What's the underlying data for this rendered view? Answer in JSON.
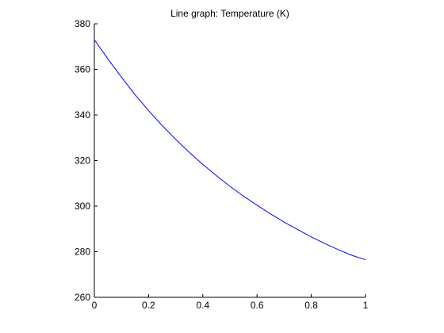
{
  "chart_data": {
    "type": "line",
    "title": "Line graph: Temperature (K)",
    "xlabel": "",
    "ylabel": "",
    "xlim": [
      0,
      1
    ],
    "ylim": [
      260,
      380
    ],
    "grid": false,
    "legend": "none",
    "x_ticks": [
      "0",
      "0.2",
      "0.4",
      "0.6",
      "0.8",
      "1"
    ],
    "y_ticks": [
      "260",
      "280",
      "300",
      "320",
      "340",
      "360",
      "380"
    ],
    "series": [
      {
        "color": "#0000ff",
        "x": [
          0,
          0.05,
          0.1,
          0.15,
          0.2,
          0.25,
          0.3,
          0.35,
          0.4,
          0.45,
          0.5,
          0.55,
          0.6,
          0.65,
          0.7,
          0.75,
          0.8,
          0.85,
          0.9,
          0.95,
          1
        ],
        "y": [
          373,
          364.6,
          356.6,
          348.9,
          341.9,
          335.4,
          329.3,
          323.6,
          318.3,
          313.4,
          308.7,
          304.4,
          300.4,
          296.6,
          293.0,
          289.7,
          286.5,
          283.6,
          280.9,
          278.4,
          276.5
        ]
      }
    ]
  }
}
